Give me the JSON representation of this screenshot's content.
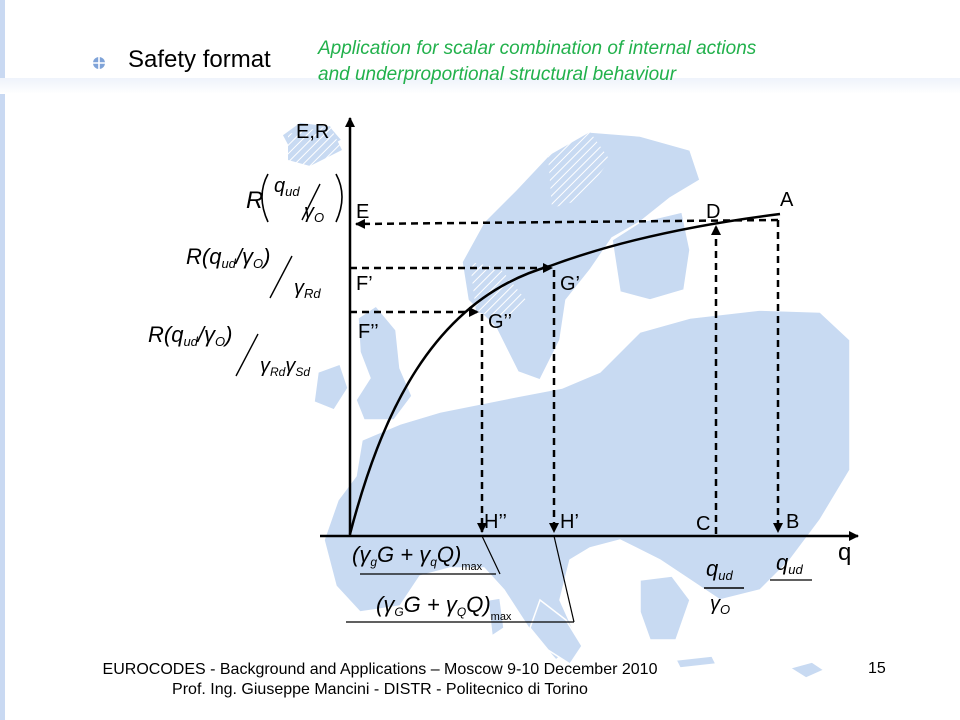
{
  "slide": {
    "section_title": "Safety format",
    "subtitle_line1": "Application for scalar combination of internal actions",
    "subtitle_line2": "and underproportional  structural behaviour",
    "page_number": "15",
    "footer_line1": "EUROCODES - Background and Applications – Moscow 9-10 December 2010",
    "footer_line2": "Prof. Ing. Giuseppe Mancini - DISTR - Politecnico di Torino",
    "accent_color": "#22b14c",
    "map_fill": "#c8daf2"
  },
  "diagram": {
    "y_axis_label": "E,R",
    "x_axis_label": "q",
    "points": {
      "A": "A",
      "B": "B",
      "C": "C",
      "D": "D",
      "E": "E",
      "F1": "F’",
      "F2": "F’’",
      "G1": "G’",
      "G2": "G’’",
      "H1": "H’",
      "H2": "H’’"
    },
    "formulas": {
      "r1_R": "R",
      "r1_num": "q",
      "r1_num_sub": "ud",
      "r1_den": "γ",
      "r1_den_sub": "O",
      "r2_main": "R(q",
      "r2_sub": "ud",
      "r2_mid": "/γ",
      "r2_sub2": "O",
      "r2_end": ")",
      "r2_den": "γ",
      "r2_den_sub": "Rd",
      "r3_main": "R(q",
      "r3_sub": "ud",
      "r3_mid": "/γ",
      "r3_sub2": "O",
      "r3_end": ")",
      "r3_den": "γ",
      "r3_den_sub1": "Rd",
      "r3_den_mid": "γ",
      "r3_den_sub2": "Sd",
      "e1_main": "(γ",
      "e1_g": "g",
      "e1_G": "G + γ",
      "e1_q": "q",
      "e1_Q": "Q)",
      "e1_max": "max",
      "e2_main": "(γ",
      "e2_g": "G",
      "e2_G": "G + γ",
      "e2_q": "Q",
      "e2_Q": "Q)",
      "e2_max": "max",
      "qud_axis": "q",
      "qud_axis_sub": "ud",
      "qud_frac_num": "q",
      "qud_frac_num_sub": "ud",
      "qud_frac_den": "γ",
      "qud_frac_den_sub": "O"
    }
  }
}
